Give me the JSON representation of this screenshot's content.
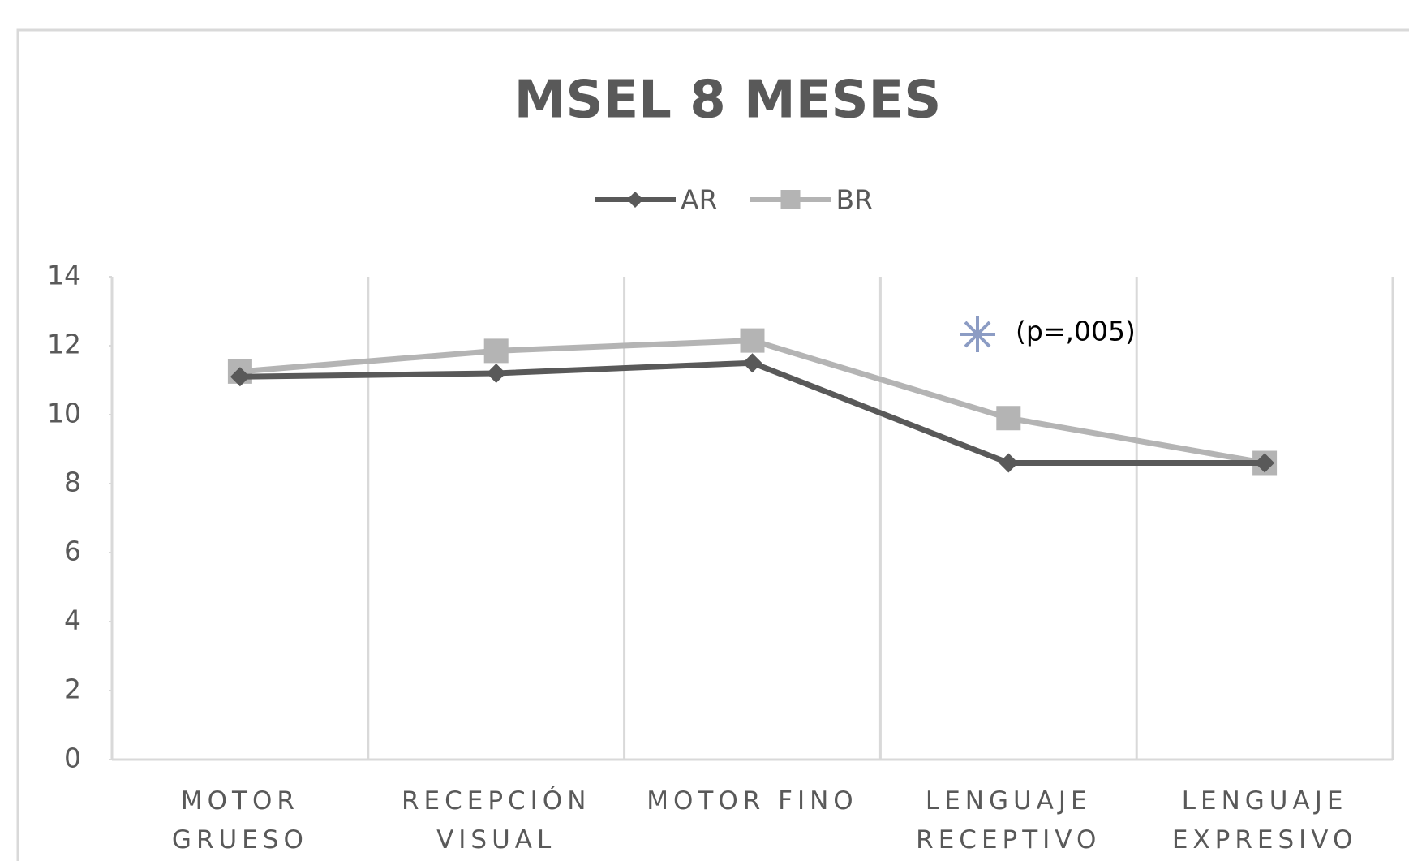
{
  "chart_data": {
    "type": "line",
    "title": "MSEL 8 MESES",
    "categories": [
      "MOTOR GRUESO",
      "RECEPCIÓN VISUAL",
      "MOTOR FINO",
      "LENGUAJE RECEPTIVO",
      "LENGUAJE EXPRESIVO"
    ],
    "series": [
      {
        "name": "AR",
        "color": "#595959",
        "marker": "diamond",
        "values": [
          11.1,
          11.2,
          11.5,
          8.6,
          8.6
        ]
      },
      {
        "name": "BR",
        "color": "#b4b4b4",
        "marker": "square",
        "values": [
          11.25,
          11.85,
          12.15,
          9.9,
          8.6
        ]
      }
    ],
    "ylim": [
      0,
      14
    ],
    "yticks": [
      0,
      2,
      4,
      6,
      8,
      10,
      12,
      14
    ],
    "legend": "top",
    "grid": "vertical",
    "annotation": "(p=,005)"
  }
}
